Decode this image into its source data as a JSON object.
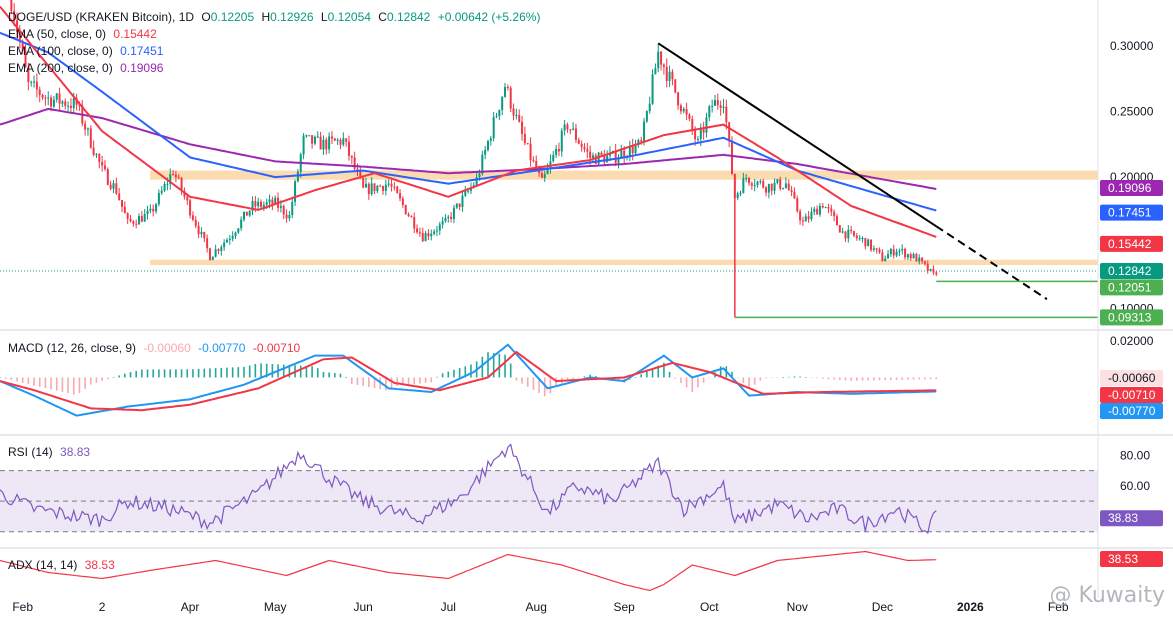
{
  "header": {
    "symbol": "DOGE/USD (KRAKEN Bitcoin), 1D",
    "ohlc": {
      "o_label": "O",
      "o": "0.12205",
      "h_label": "H",
      "h": "0.12926",
      "l_label": "L",
      "l": "0.12054",
      "c_label": "C",
      "c": "0.12842",
      "chg": "+0.00642 (+5.26%)"
    },
    "ema50": {
      "label": "EMA (50, close, 0)",
      "value": "0.15442"
    },
    "ema100": {
      "label": "EMA (100, close, 0)",
      "value": "0.17451"
    },
    "ema200": {
      "label": "EMA (200, close, 0)",
      "value": "0.19096"
    }
  },
  "colors": {
    "up": "#089981",
    "down": "#f23645",
    "ema50": "#f23645",
    "ema100": "#2962ff",
    "ema200": "#9c27b0",
    "zone": "#fbd7a7",
    "trend": "#000000",
    "support": "#4caf50",
    "macd": "#2196f3",
    "signal": "#f23645",
    "rsi": "#7e57c2",
    "rsiband": "#ede7f6",
    "adx": "#f23645",
    "price": "#089981"
  },
  "price_axis": {
    "ticks": [
      "0.30000",
      "0.25000",
      "0.20000",
      "0.10000"
    ]
  },
  "price_tags": {
    "ema200": "0.19096",
    "ema100": "0.17451",
    "ema50": "0.15442",
    "last": "0.12842",
    "support1": "0.12051",
    "support2": "0.09313"
  },
  "macd": {
    "label": "MACD (12, 26, close, 9)",
    "hist": "-0.00060",
    "macd": "-0.00770",
    "signal": "-0.00710",
    "tick": "0.02000",
    "tags": [
      "-0.00060",
      "-0.00710",
      "-0.00770"
    ]
  },
  "rsi": {
    "label": "RSI (14)",
    "value": "38.83",
    "ticks": [
      "80.00",
      "60.00"
    ],
    "tag": "38.83"
  },
  "adx": {
    "label": "ADX (14, 14)",
    "value": "38.53",
    "tag": "38.53"
  },
  "time_axis": [
    "Feb",
    "2",
    "Apr",
    "May",
    "Jun",
    "Jul",
    "Aug",
    "Sep",
    "Oct",
    "Nov",
    "Dec",
    "2026",
    "Feb"
  ],
  "watermark": "@ Kuwaity",
  "chart_data": {
    "type": "line",
    "x_range": [
      "2025-01-24",
      "2026-02-15"
    ],
    "price_ylim": [
      0.085,
      0.335
    ],
    "price_anchors": [
      [
        "2025-01-28",
        0.335
      ],
      [
        "2025-02-03",
        0.27
      ],
      [
        "2025-02-10",
        0.26
      ],
      [
        "2025-02-20",
        0.255
      ],
      [
        "2025-03-01",
        0.205
      ],
      [
        "2025-03-06",
        0.19
      ],
      [
        "2025-03-10",
        0.165
      ],
      [
        "2025-03-18",
        0.172
      ],
      [
        "2025-03-26",
        0.205
      ],
      [
        "2025-04-03",
        0.165
      ],
      [
        "2025-04-08",
        0.14
      ],
      [
        "2025-04-15",
        0.155
      ],
      [
        "2025-04-23",
        0.178
      ],
      [
        "2025-05-01",
        0.18
      ],
      [
        "2025-05-06",
        0.17
      ],
      [
        "2025-05-11",
        0.228
      ],
      [
        "2025-05-18",
        0.225
      ],
      [
        "2025-05-25",
        0.228
      ],
      [
        "2025-06-01",
        0.19
      ],
      [
        "2025-06-10",
        0.195
      ],
      [
        "2025-06-22",
        0.155
      ],
      [
        "2025-06-30",
        0.165
      ],
      [
        "2025-07-11",
        0.198
      ],
      [
        "2025-07-21",
        0.27
      ],
      [
        "2025-07-28",
        0.225
      ],
      [
        "2025-08-03",
        0.195
      ],
      [
        "2025-08-12",
        0.24
      ],
      [
        "2025-08-20",
        0.215
      ],
      [
        "2025-08-28",
        0.215
      ],
      [
        "2025-09-07",
        0.225
      ],
      [
        "2025-09-13",
        0.295
      ],
      [
        "2025-09-20",
        0.26
      ],
      [
        "2025-09-27",
        0.225
      ],
      [
        "2025-10-02",
        0.255
      ],
      [
        "2025-10-06",
        0.26
      ],
      [
        "2025-10-10",
        0.185
      ],
      [
        "2025-10-14",
        0.2
      ],
      [
        "2025-10-21",
        0.193
      ],
      [
        "2025-10-28",
        0.195
      ],
      [
        "2025-11-03",
        0.165
      ],
      [
        "2025-11-10",
        0.18
      ],
      [
        "2025-11-17",
        0.158
      ],
      [
        "2025-11-25",
        0.151
      ],
      [
        "2025-12-01",
        0.138
      ],
      [
        "2025-12-06",
        0.145
      ],
      [
        "2025-12-13",
        0.138
      ],
      [
        "2025-12-19",
        0.125
      ],
      [
        "2025-12-20",
        0.1284
      ]
    ],
    "ema50": [
      [
        "2025-01-24",
        0.33
      ],
      [
        "2025-02-10",
        0.285
      ],
      [
        "2025-03-01",
        0.235
      ],
      [
        "2025-04-01",
        0.185
      ],
      [
        "2025-04-25",
        0.175
      ],
      [
        "2025-05-15",
        0.19
      ],
      [
        "2025-06-05",
        0.203
      ],
      [
        "2025-07-01",
        0.185
      ],
      [
        "2025-07-25",
        0.205
      ],
      [
        "2025-08-20",
        0.213
      ],
      [
        "2025-09-15",
        0.232
      ],
      [
        "2025-10-06",
        0.24
      ],
      [
        "2025-10-25",
        0.215
      ],
      [
        "2025-11-20",
        0.178
      ],
      [
        "2025-12-20",
        0.15442
      ]
    ],
    "ema100": [
      [
        "2025-01-24",
        0.31
      ],
      [
        "2025-02-10",
        0.295
      ],
      [
        "2025-03-01",
        0.265
      ],
      [
        "2025-04-01",
        0.215
      ],
      [
        "2025-05-01",
        0.2
      ],
      [
        "2025-06-01",
        0.205
      ],
      [
        "2025-07-01",
        0.195
      ],
      [
        "2025-08-01",
        0.205
      ],
      [
        "2025-09-01",
        0.215
      ],
      [
        "2025-10-06",
        0.23
      ],
      [
        "2025-11-01",
        0.205
      ],
      [
        "2025-12-20",
        0.17451
      ]
    ],
    "ema200": [
      [
        "2025-01-24",
        0.24
      ],
      [
        "2025-02-10",
        0.252
      ],
      [
        "2025-03-01",
        0.245
      ],
      [
        "2025-04-01",
        0.225
      ],
      [
        "2025-05-01",
        0.212
      ],
      [
        "2025-06-01",
        0.208
      ],
      [
        "2025-07-01",
        0.203
      ],
      [
        "2025-08-01",
        0.206
      ],
      [
        "2025-09-01",
        0.21
      ],
      [
        "2025-10-06",
        0.217
      ],
      [
        "2025-11-01",
        0.21
      ],
      [
        "2025-12-20",
        0.19096
      ]
    ],
    "resistance_zone": [
      0.198,
      0.205
    ],
    "support_zone": [
      0.133,
      0.137
    ],
    "trendline": [
      [
        "2025-09-13",
        0.302
      ],
      [
        "2026-01-28",
        0.107
      ]
    ],
    "support_lines": [
      {
        "from": "2025-12-20",
        "to": "2026-02-15",
        "value": 0.12051
      },
      {
        "from": "2025-10-10",
        "to": "2026-02-15",
        "value": 0.09313
      }
    ],
    "last_price": 0.12842,
    "macd_ylim": [
      -0.03,
      0.025
    ],
    "macd_anchors": [
      [
        "2025-01-24",
        -0.002
      ],
      [
        "2025-02-05",
        -0.01
      ],
      [
        "2025-02-20",
        -0.021
      ],
      [
        "2025-03-10",
        -0.016
      ],
      [
        "2025-04-01",
        -0.012
      ],
      [
        "2025-04-20",
        -0.004
      ],
      [
        "2025-05-15",
        0.012
      ],
      [
        "2025-05-25",
        0.012
      ],
      [
        "2025-06-10",
        -0.006
      ],
      [
        "2025-06-25",
        -0.008
      ],
      [
        "2025-07-10",
        0.003
      ],
      [
        "2025-07-22",
        0.018
      ],
      [
        "2025-08-05",
        -0.006
      ],
      [
        "2025-08-20",
        0.0
      ],
      [
        "2025-09-01",
        -0.002
      ],
      [
        "2025-09-15",
        0.012
      ],
      [
        "2025-09-25",
        0.0
      ],
      [
        "2025-10-06",
        0.005
      ],
      [
        "2025-10-15",
        -0.01
      ],
      [
        "2025-11-01",
        -0.008
      ],
      [
        "2025-11-20",
        -0.009
      ],
      [
        "2025-12-20",
        -0.0077
      ]
    ],
    "signal_anchors": [
      [
        "2025-01-24",
        -0.002
      ],
      [
        "2025-02-05",
        -0.007
      ],
      [
        "2025-02-25",
        -0.017
      ],
      [
        "2025-03-15",
        -0.018
      ],
      [
        "2025-04-01",
        -0.015
      ],
      [
        "2025-04-25",
        -0.006
      ],
      [
        "2025-05-18",
        0.01
      ],
      [
        "2025-05-28",
        0.011
      ],
      [
        "2025-06-12",
        -0.003
      ],
      [
        "2025-06-28",
        -0.007
      ],
      [
        "2025-07-15",
        0.0
      ],
      [
        "2025-07-25",
        0.014
      ],
      [
        "2025-08-08",
        -0.002
      ],
      [
        "2025-09-01",
        0.0
      ],
      [
        "2025-09-18",
        0.008
      ],
      [
        "2025-10-01",
        0.003
      ],
      [
        "2025-10-20",
        -0.009
      ],
      [
        "2025-11-10",
        -0.008
      ],
      [
        "2025-12-20",
        -0.0071
      ]
    ],
    "rsi_ylim": [
      20,
      92
    ],
    "rsi_levels": [
      70,
      50,
      30
    ],
    "rsi_anchors": [
      [
        "2025-01-24",
        55
      ],
      [
        "2025-02-05",
        45
      ],
      [
        "2025-02-20",
        40
      ],
      [
        "2025-03-01",
        38
      ],
      [
        "2025-03-10",
        50
      ],
      [
        "2025-03-25",
        45
      ],
      [
        "2025-04-08",
        36
      ],
      [
        "2025-04-25",
        55
      ],
      [
        "2025-05-10",
        82
      ],
      [
        "2025-05-20",
        65
      ],
      [
        "2025-06-01",
        50
      ],
      [
        "2025-06-20",
        38
      ],
      [
        "2025-07-05",
        52
      ],
      [
        "2025-07-22",
        86
      ],
      [
        "2025-07-28",
        68
      ],
      [
        "2025-08-05",
        42
      ],
      [
        "2025-08-15",
        60
      ],
      [
        "2025-08-28",
        50
      ],
      [
        "2025-09-13",
        75
      ],
      [
        "2025-09-22",
        45
      ],
      [
        "2025-10-06",
        60
      ],
      [
        "2025-10-10",
        36
      ],
      [
        "2025-10-25",
        48
      ],
      [
        "2025-11-05",
        38
      ],
      [
        "2025-11-15",
        45
      ],
      [
        "2025-11-25",
        35
      ],
      [
        "2025-12-06",
        45
      ],
      [
        "2025-12-16",
        32
      ],
      [
        "2025-12-20",
        38.83
      ]
    ],
    "adx_ylim": [
      15,
      45
    ],
    "adx_anchors": [
      [
        "2025-01-24",
        38
      ],
      [
        "2025-02-10",
        30
      ],
      [
        "2025-03-01",
        26
      ],
      [
        "2025-03-20",
        32
      ],
      [
        "2025-04-10",
        38
      ],
      [
        "2025-05-05",
        28
      ],
      [
        "2025-05-20",
        38
      ],
      [
        "2025-06-10",
        30
      ],
      [
        "2025-07-01",
        26
      ],
      [
        "2025-07-22",
        42
      ],
      [
        "2025-08-10",
        35
      ],
      [
        "2025-09-01",
        22
      ],
      [
        "2025-09-10",
        18
      ],
      [
        "2025-09-15",
        22
      ],
      [
        "2025-09-25",
        35
      ],
      [
        "2025-10-10",
        28
      ],
      [
        "2025-10-25",
        38
      ],
      [
        "2025-11-25",
        44
      ],
      [
        "2025-12-10",
        38
      ],
      [
        "2025-12-20",
        38.53
      ]
    ]
  }
}
